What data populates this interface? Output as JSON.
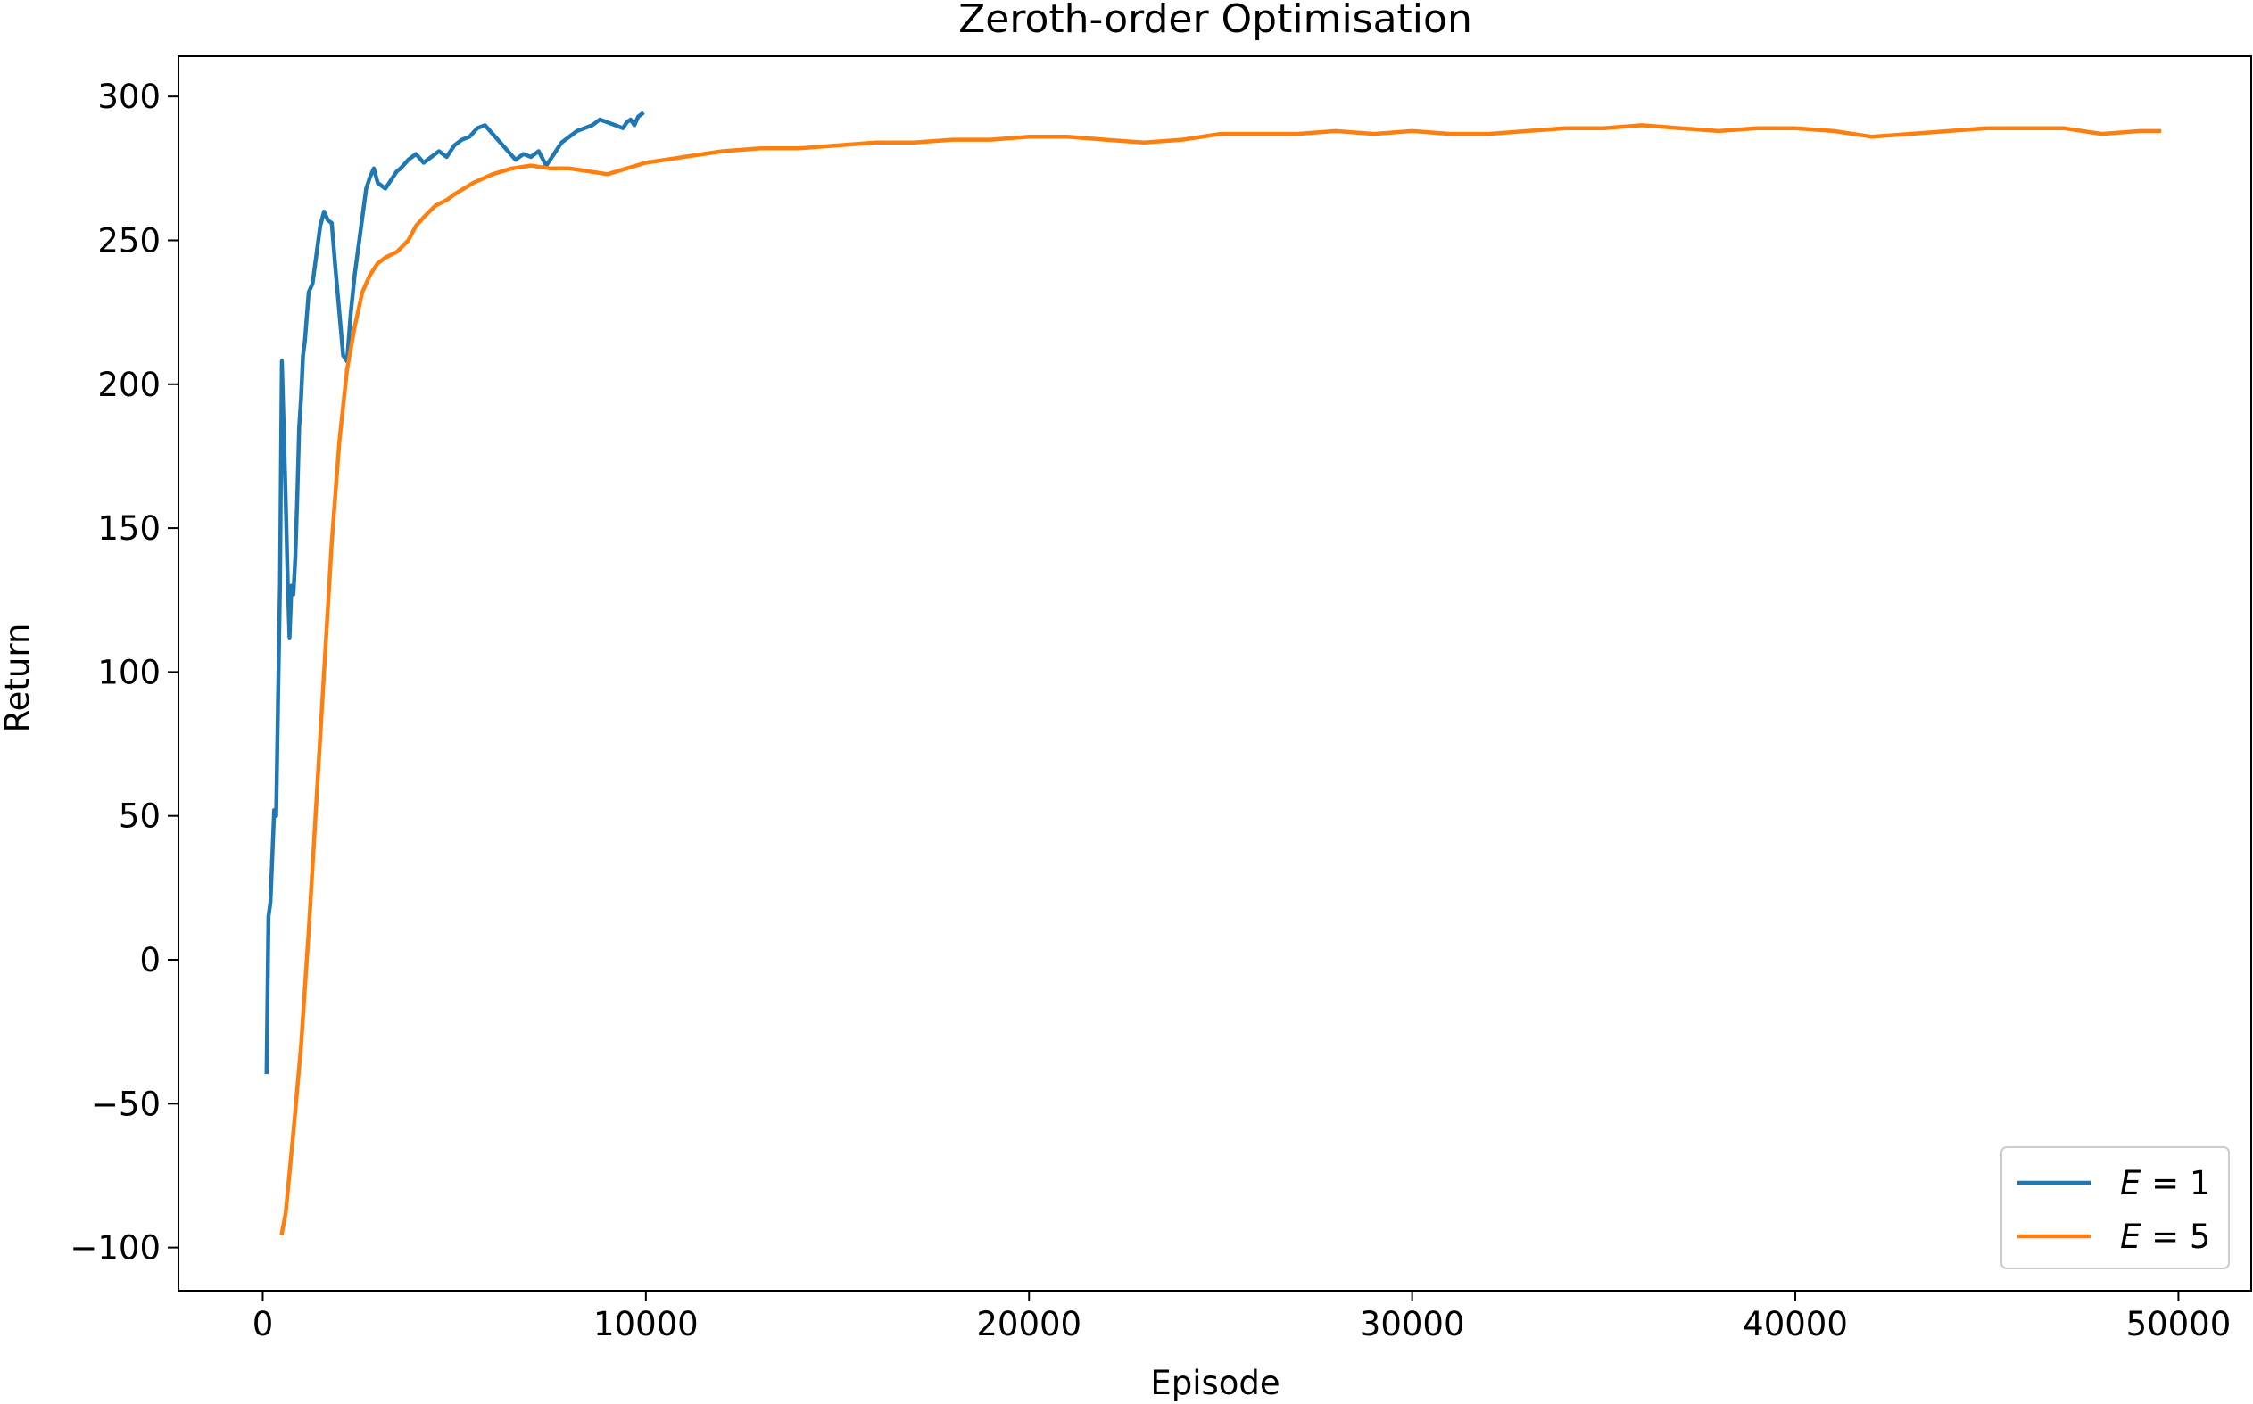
{
  "chart_data": {
    "type": "line",
    "title": "Zeroth-order Optimisation",
    "xlabel": "Episode",
    "ylabel": "Return",
    "xlim": [
      -2200,
      51900
    ],
    "ylim": [
      -115,
      314
    ],
    "xticks": [
      0,
      10000,
      20000,
      30000,
      40000,
      50000
    ],
    "xtick_labels": [
      "0",
      "10000",
      "20000",
      "30000",
      "40000",
      "50000"
    ],
    "yticks": [
      -100,
      -50,
      0,
      50,
      100,
      150,
      200,
      250,
      300
    ],
    "ytick_labels": [
      "−100",
      "−50",
      "0",
      "50",
      "100",
      "150",
      "200",
      "250",
      "300"
    ],
    "grid": false,
    "legend_position": "bottom-right",
    "series": [
      {
        "name": "E = 1",
        "name_var": "E",
        "name_value": "1",
        "color": "#1f77b4",
        "x": [
          100,
          150,
          200,
          300,
          350,
          400,
          450,
          500,
          600,
          650,
          700,
          750,
          800,
          850,
          900,
          950,
          1000,
          1050,
          1100,
          1200,
          1300,
          1400,
          1500,
          1600,
          1700,
          1800,
          1900,
          2000,
          2100,
          2200,
          2300,
          2400,
          2500,
          2600,
          2700,
          2800,
          2900,
          3000,
          3200,
          3400,
          3500,
          3600,
          3800,
          4000,
          4200,
          4400,
          4600,
          4800,
          5000,
          5200,
          5400,
          5600,
          5800,
          6000,
          6200,
          6400,
          6600,
          6800,
          7000,
          7200,
          7400,
          7600,
          7800,
          8000,
          8200,
          8400,
          8600,
          8800,
          9000,
          9200,
          9400,
          9500,
          9600,
          9700,
          9800,
          9900
        ],
        "y": [
          -39,
          15,
          20,
          52,
          50,
          90,
          130,
          208,
          160,
          132,
          112,
          130,
          127,
          140,
          160,
          185,
          195,
          210,
          215,
          232,
          235,
          245,
          255,
          260,
          257,
          256,
          240,
          225,
          210,
          208,
          225,
          238,
          248,
          258,
          268,
          272,
          275,
          270,
          268,
          272,
          274,
          275,
          278,
          280,
          277,
          279,
          281,
          279,
          283,
          285,
          286,
          289,
          290,
          287,
          284,
          281,
          278,
          280,
          279,
          281,
          276,
          280,
          284,
          286,
          288,
          289,
          290,
          292,
          291,
          290,
          289,
          291,
          292,
          290,
          293,
          294
        ]
      },
      {
        "name": "E = 5",
        "name_var": "E",
        "name_value": "5",
        "color": "#ff7f0e",
        "x": [
          500,
          600,
          800,
          1000,
          1200,
          1400,
          1600,
          1800,
          2000,
          2200,
          2400,
          2600,
          2800,
          3000,
          3200,
          3500,
          3800,
          4000,
          4200,
          4500,
          4800,
          5000,
          5500,
          6000,
          6500,
          7000,
          7500,
          8000,
          8500,
          9000,
          9500,
          10000,
          11000,
          12000,
          13000,
          14000,
          15000,
          16000,
          17000,
          18000,
          19000,
          20000,
          21000,
          22000,
          23000,
          24000,
          25000,
          26000,
          27000,
          28000,
          29000,
          30000,
          31000,
          32000,
          33000,
          34000,
          35000,
          36000,
          37000,
          38000,
          39000,
          40000,
          41000,
          42000,
          43000,
          44000,
          45000,
          46000,
          47000,
          48000,
          49000,
          49500
        ],
        "y": [
          -95,
          -88,
          -60,
          -30,
          10,
          55,
          100,
          145,
          180,
          205,
          220,
          232,
          238,
          242,
          244,
          246,
          250,
          255,
          258,
          262,
          264,
          266,
          270,
          273,
          275,
          276,
          275,
          275,
          274,
          273,
          275,
          277,
          279,
          281,
          282,
          282,
          283,
          284,
          284,
          285,
          285,
          286,
          286,
          285,
          284,
          285,
          287,
          287,
          287,
          288,
          287,
          288,
          287,
          287,
          288,
          289,
          289,
          290,
          289,
          288,
          289,
          289,
          288,
          286,
          287,
          288,
          289,
          289,
          289,
          287,
          288,
          288
        ]
      }
    ]
  }
}
